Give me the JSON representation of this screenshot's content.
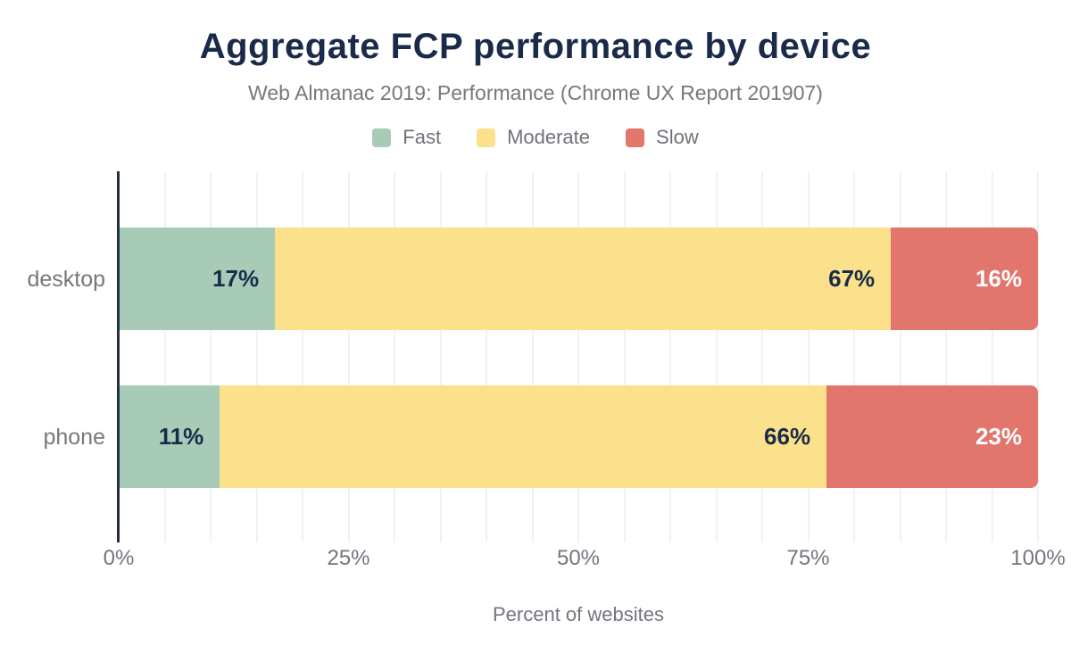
{
  "header": {
    "title": "Aggregate FCP performance by device",
    "subtitle": "Web Almanac 2019: Performance (Chrome UX Report 201907)"
  },
  "colors": {
    "title_text": "#1a2b49",
    "muted_text": "#75787c",
    "axis_line": "#252f3f",
    "gridline": "#f2f2f2",
    "background": "#ffffff",
    "fast": "#a8cbb8",
    "moderate": "#fbe18b",
    "slow": "#e2756c"
  },
  "chart_data": {
    "type": "bar",
    "orientation": "horizontal",
    "stacked": true,
    "title": "Aggregate FCP performance by device",
    "subtitle": "Web Almanac 2019: Performance (Chrome UX Report 201907)",
    "categories": [
      "desktop",
      "phone"
    ],
    "series": [
      {
        "name": "Fast",
        "color": "#a8cbb8",
        "label_color": "#1a2b49",
        "values": [
          17,
          11
        ]
      },
      {
        "name": "Moderate",
        "color": "#fbe18b",
        "label_color": "#1a2b49",
        "values": [
          67,
          66
        ]
      },
      {
        "name": "Slow",
        "color": "#e2756c",
        "label_color": "#ffffff",
        "values": [
          16,
          23
        ]
      }
    ],
    "value_suffix": "%",
    "xlabel": "Percent of websites",
    "ylabel": "",
    "xlim": [
      0,
      100
    ],
    "x_ticks": [
      "0%",
      "25%",
      "50%",
      "75%",
      "100%"
    ],
    "gridline_step_percent": 5,
    "grid": true,
    "legend_position": "top"
  }
}
